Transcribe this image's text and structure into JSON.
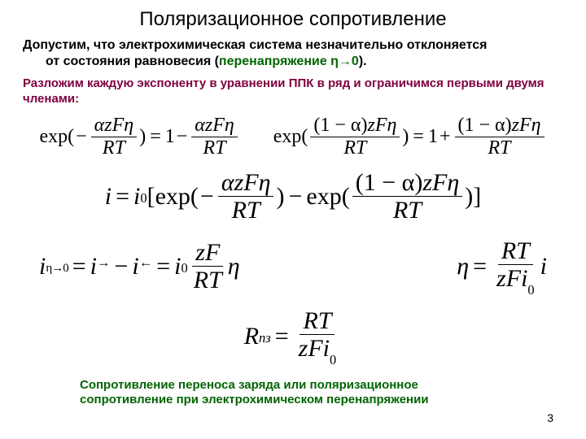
{
  "title": "Поляризационное сопротивление",
  "para1_a": "Допустим, что электрохимическая система незначительно отклоняется",
  "para1_b": "от состояния равновесия (",
  "para1_green": "перенапряжение  η→0",
  "para1_c": ").",
  "para2": "Разложим каждую экспоненту в уравнении ППК в ряд и ограничимся первыми двумя членами:",
  "eq": {
    "exp": "exp(",
    "minus": "−",
    "plus": "+",
    "eq": "=",
    "one": "1",
    "close": ")",
    "lbrack": "[",
    "rbrack": "]",
    "alpha": "α",
    "z": "z",
    "F": "F",
    "eta": "η",
    "R": "R",
    "T": "T",
    "i": "i",
    "i0": "i",
    "sub0": "0",
    "oneMinusAlpha": "(1 − α)",
    "Rpz": "R",
    "pz": "пз",
    "etaTo0": "η→0",
    "arrR": "→",
    "arrL": "←"
  },
  "caption": "Сопротивление переноса заряда или поляризационное сопротивление при электрохимическом перенапряжении",
  "pagenum": "3"
}
